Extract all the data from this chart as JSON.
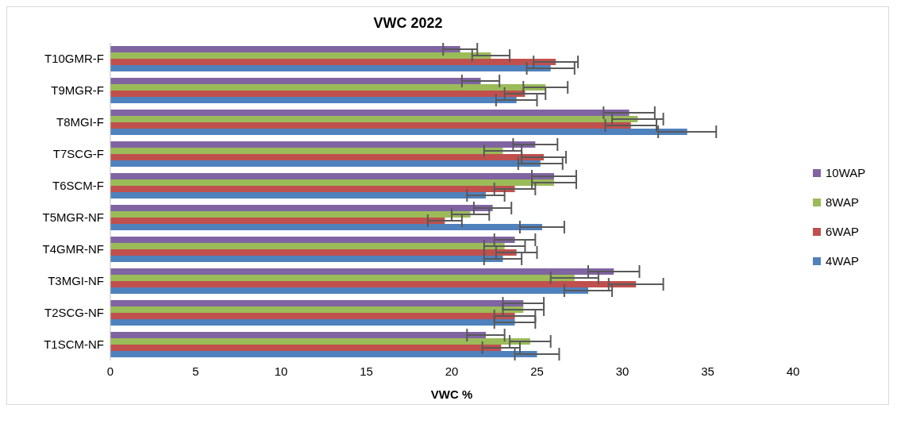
{
  "chart_data": {
    "type": "bar",
    "orientation": "horizontal",
    "title": "VWC 2022",
    "xlabel": "VWC %",
    "categories": [
      "T10GMR-F",
      "T9MGR-F",
      "T8MGI-F",
      "T7SCG-F",
      "T6SCM-F",
      "T5MGR-NF",
      "T4GMR-NF",
      "T3MGI-NF",
      "T2SCG-NF",
      "T1SCM-NF"
    ],
    "series": [
      {
        "name": "10WAP",
        "color": "#8064a2",
        "values": [
          20.5,
          21.7,
          30.4,
          24.9,
          26.0,
          22.4,
          23.7,
          29.5,
          24.2,
          22.0
        ],
        "errors": [
          1.0,
          1.1,
          1.5,
          1.3,
          1.3,
          1.1,
          1.2,
          1.5,
          1.2,
          1.1
        ]
      },
      {
        "name": "8WAP",
        "color": "#9bbb59",
        "values": [
          22.3,
          25.5,
          30.9,
          23.0,
          26.0,
          21.1,
          23.1,
          27.2,
          24.2,
          24.6
        ],
        "errors": [
          1.1,
          1.3,
          1.5,
          1.1,
          1.3,
          1.1,
          1.2,
          1.4,
          1.2,
          1.2
        ]
      },
      {
        "name": "6WAP",
        "color": "#c0504d",
        "values": [
          26.1,
          24.3,
          30.5,
          25.4,
          23.7,
          19.6,
          23.8,
          30.8,
          23.7,
          22.9
        ],
        "errors": [
          1.3,
          1.2,
          1.5,
          1.3,
          1.2,
          1.0,
          1.2,
          1.6,
          1.2,
          1.1
        ]
      },
      {
        "name": "4WAP",
        "color": "#4f81bd",
        "values": [
          25.8,
          23.8,
          33.8,
          25.2,
          22.0,
          25.3,
          23.0,
          28.0,
          23.7,
          25.0
        ],
        "errors": [
          1.4,
          1.2,
          1.7,
          1.3,
          1.1,
          1.3,
          1.1,
          1.4,
          1.2,
          1.3
        ]
      }
    ],
    "xlim": [
      0,
      40
    ],
    "xticks": [
      0,
      5,
      10,
      15,
      20,
      25,
      30,
      35,
      40
    ],
    "legend": "right",
    "grid": false
  }
}
